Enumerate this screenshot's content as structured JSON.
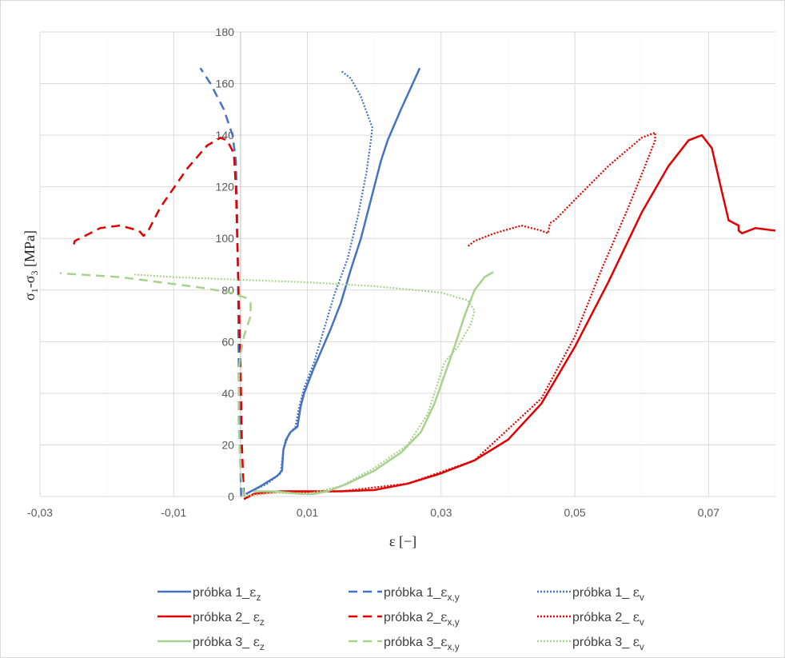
{
  "chart_data": {
    "type": "line",
    "xlabel": "ε [−]",
    "ylabel": "σ1-σ3 [MPa]",
    "ylabel_parts": {
      "sigma_a": "σ",
      "sub_a": "1",
      "dash": "-",
      "sigma_b": "σ",
      "sub_b": "3",
      "unit": " [MPa]"
    },
    "xlim": [
      -0.03,
      0.08
    ],
    "ylim": [
      0,
      180
    ],
    "x_ticks": [
      -0.03,
      -0.01,
      0.01,
      0.03,
      0.05,
      0.07
    ],
    "x_tick_labels": [
      "-0,03",
      "-0,01",
      "0,01",
      "0,03",
      "0,05",
      "0,07"
    ],
    "x_minor_gridlines": [
      -0.02,
      0.0,
      0.02,
      0.04,
      0.06,
      0.08
    ],
    "y_ticks": [
      0,
      20,
      40,
      60,
      80,
      100,
      120,
      140,
      160,
      180
    ],
    "y_tick_labels": [
      "0",
      "20",
      "40",
      "60",
      "80",
      "100",
      "120",
      "140",
      "160",
      "180"
    ],
    "grid": true,
    "legend_position": "bottom",
    "colors": {
      "blue": "#4472c4",
      "red": "#e00000",
      "green": "#a9d18e"
    },
    "series": [
      {
        "name": "próbka 1_ εz",
        "legend": {
          "prefix": "próbka 1_",
          "sym": "ε",
          "sub": "z"
        },
        "color": "#4472c4",
        "style": "solid",
        "points": [
          [
            0.0008,
            1
          ],
          [
            0.003,
            4
          ],
          [
            0.0055,
            8
          ],
          [
            0.0062,
            10
          ],
          [
            0.0064,
            18
          ],
          [
            0.0068,
            22
          ],
          [
            0.0075,
            25
          ],
          [
            0.0085,
            27
          ],
          [
            0.009,
            35
          ],
          [
            0.0095,
            40
          ],
          [
            0.011,
            50
          ],
          [
            0.012,
            56
          ],
          [
            0.0135,
            65
          ],
          [
            0.015,
            75
          ],
          [
            0.0165,
            88
          ],
          [
            0.018,
            100
          ],
          [
            0.0195,
            115
          ],
          [
            0.021,
            130
          ],
          [
            0.022,
            138
          ],
          [
            0.024,
            150
          ],
          [
            0.0268,
            166
          ]
        ]
      },
      {
        "name": "próbka 1_εx,y",
        "legend": {
          "prefix": "próbka 1_",
          "sym": "ε",
          "sub": "x,y"
        },
        "color": "#4472c4",
        "style": "dashed",
        "points": [
          [
            0.0001,
            0
          ],
          [
            0.0,
            10
          ],
          [
            -0.0002,
            30
          ],
          [
            -0.0003,
            60
          ],
          [
            -0.0004,
            90
          ],
          [
            -0.0005,
            110
          ],
          [
            -0.0007,
            130
          ],
          [
            -0.0012,
            140
          ],
          [
            -0.0025,
            150
          ],
          [
            -0.0045,
            160
          ],
          [
            -0.006,
            166
          ]
        ]
      },
      {
        "name": "próbka 1_ εv",
        "legend": {
          "prefix": "próbka 1_ ",
          "sym": "ε",
          "sub": "v"
        },
        "color": "#4472c4",
        "style": "dotted",
        "points": [
          [
            0.0,
            0
          ],
          [
            0.004,
            5
          ],
          [
            0.006,
            9
          ],
          [
            0.0064,
            18
          ],
          [
            0.0072,
            24
          ],
          [
            0.0082,
            27
          ],
          [
            0.0088,
            35
          ],
          [
            0.0095,
            42
          ],
          [
            0.011,
            52
          ],
          [
            0.0125,
            65
          ],
          [
            0.014,
            78
          ],
          [
            0.016,
            92
          ],
          [
            0.0175,
            108
          ],
          [
            0.0188,
            125
          ],
          [
            0.0195,
            138
          ],
          [
            0.0197,
            143
          ],
          [
            0.018,
            155
          ],
          [
            0.0165,
            162
          ],
          [
            0.015,
            165
          ]
        ]
      },
      {
        "name": "próbka 2_ εz",
        "legend": {
          "prefix": "próbka 2_ ",
          "sym": "ε",
          "sub": "z"
        },
        "color": "#e00000",
        "style": "solid",
        "points": [
          [
            0.0005,
            -1
          ],
          [
            0.002,
            1
          ],
          [
            0.006,
            2
          ],
          [
            0.015,
            2
          ],
          [
            0.02,
            2.5
          ],
          [
            0.025,
            5
          ],
          [
            0.03,
            9
          ],
          [
            0.035,
            14
          ],
          [
            0.04,
            22
          ],
          [
            0.045,
            36
          ],
          [
            0.05,
            58
          ],
          [
            0.055,
            83
          ],
          [
            0.06,
            110
          ],
          [
            0.064,
            128
          ],
          [
            0.067,
            138
          ],
          [
            0.069,
            140
          ],
          [
            0.0705,
            135
          ],
          [
            0.072,
            118
          ],
          [
            0.073,
            107
          ],
          [
            0.0745,
            105
          ],
          [
            0.0745,
            103
          ],
          [
            0.075,
            102
          ],
          [
            0.077,
            104
          ],
          [
            0.08,
            103
          ]
        ]
      },
      {
        "name": "próbka 2_εx,y",
        "legend": {
          "prefix": "próbka 2_",
          "sym": "ε",
          "sub": "x,y"
        },
        "color": "#e00000",
        "style": "dashed",
        "points": [
          [
            0.0005,
            0
          ],
          [
            0.0002,
            20
          ],
          [
            0.0,
            50
          ],
          [
            -0.0003,
            80
          ],
          [
            -0.0005,
            100
          ],
          [
            -0.0007,
            120
          ],
          [
            -0.001,
            133
          ],
          [
            -0.002,
            138
          ],
          [
            -0.003,
            139
          ],
          [
            -0.005,
            136
          ],
          [
            -0.008,
            127
          ],
          [
            -0.012,
            112
          ],
          [
            -0.0138,
            103
          ],
          [
            -0.0145,
            101
          ],
          [
            -0.0152,
            103
          ],
          [
            -0.018,
            105
          ],
          [
            -0.021,
            104
          ],
          [
            -0.024,
            100
          ],
          [
            -0.0248,
            99
          ],
          [
            -0.025,
            97
          ]
        ]
      },
      {
        "name": "próbka 2_ εv",
        "legend": {
          "prefix": "próbka 2_ ",
          "sym": "ε",
          "sub": "v"
        },
        "color": "#e00000",
        "style": "dotted",
        "points": [
          [
            0.0,
            0
          ],
          [
            0.005,
            1.5
          ],
          [
            0.015,
            2
          ],
          [
            0.025,
            5
          ],
          [
            0.035,
            14
          ],
          [
            0.045,
            38
          ],
          [
            0.05,
            62
          ],
          [
            0.054,
            88
          ],
          [
            0.058,
            112
          ],
          [
            0.0605,
            128
          ],
          [
            0.062,
            138
          ],
          [
            0.062,
            141
          ],
          [
            0.06,
            139
          ],
          [
            0.055,
            128
          ],
          [
            0.05,
            115
          ],
          [
            0.047,
            107
          ],
          [
            0.0463,
            106
          ],
          [
            0.046,
            102
          ],
          [
            0.045,
            103
          ],
          [
            0.042,
            105
          ],
          [
            0.038,
            102
          ],
          [
            0.035,
            99
          ],
          [
            0.034,
            97
          ]
        ]
      },
      {
        "name": "próbka 3_ εz",
        "legend": {
          "prefix": "próbka 3_ ",
          "sym": "ε",
          "sub": "z"
        },
        "color": "#a9d18e",
        "style": "solid",
        "points": [
          [
            0.002,
            2
          ],
          [
            0.005,
            2
          ],
          [
            0.009,
            1
          ],
          [
            0.011,
            1
          ],
          [
            0.013,
            2
          ],
          [
            0.016,
            5
          ],
          [
            0.02,
            10
          ],
          [
            0.024,
            17
          ],
          [
            0.027,
            25
          ],
          [
            0.029,
            36
          ],
          [
            0.0305,
            47
          ],
          [
            0.032,
            58
          ],
          [
            0.0335,
            70
          ],
          [
            0.035,
            80
          ],
          [
            0.0365,
            85
          ],
          [
            0.0378,
            87
          ]
        ]
      },
      {
        "name": "próbka 3_εx,y",
        "legend": {
          "prefix": "próbka 3_",
          "sym": "ε",
          "sub": "x,y"
        },
        "color": "#a9d18e",
        "style": "dashed",
        "points": [
          [
            0.0005,
            0
          ],
          [
            0.0,
            10
          ],
          [
            -0.0003,
            30
          ],
          [
            -0.0002,
            50
          ],
          [
            0.0,
            55
          ],
          [
            0.0005,
            62
          ],
          [
            0.0015,
            70
          ],
          [
            0.0015,
            75
          ],
          [
            0.0008,
            77
          ],
          [
            -0.0015,
            79
          ],
          [
            -0.006,
            81
          ],
          [
            -0.012,
            83
          ],
          [
            -0.018,
            85
          ],
          [
            -0.024,
            86
          ],
          [
            -0.027,
            86.5
          ]
        ]
      },
      {
        "name": "próbka 3_ εv",
        "legend": {
          "prefix": "próbka 3_ ",
          "sym": "ε",
          "sub": "v"
        },
        "color": "#a9d18e",
        "style": "dotted",
        "points": [
          [
            0.0,
            0
          ],
          [
            0.005,
            1.5
          ],
          [
            0.01,
            1
          ],
          [
            0.015,
            4
          ],
          [
            0.02,
            11
          ],
          [
            0.025,
            20
          ],
          [
            0.028,
            32
          ],
          [
            0.0305,
            52
          ],
          [
            0.0325,
            58
          ],
          [
            0.0345,
            67
          ],
          [
            0.035,
            72
          ],
          [
            0.034,
            76
          ],
          [
            0.03,
            79
          ],
          [
            0.02,
            81.5
          ],
          [
            0.01,
            83
          ],
          [
            0.0,
            84
          ],
          [
            -0.01,
            85
          ],
          [
            -0.016,
            86
          ]
        ]
      }
    ]
  }
}
